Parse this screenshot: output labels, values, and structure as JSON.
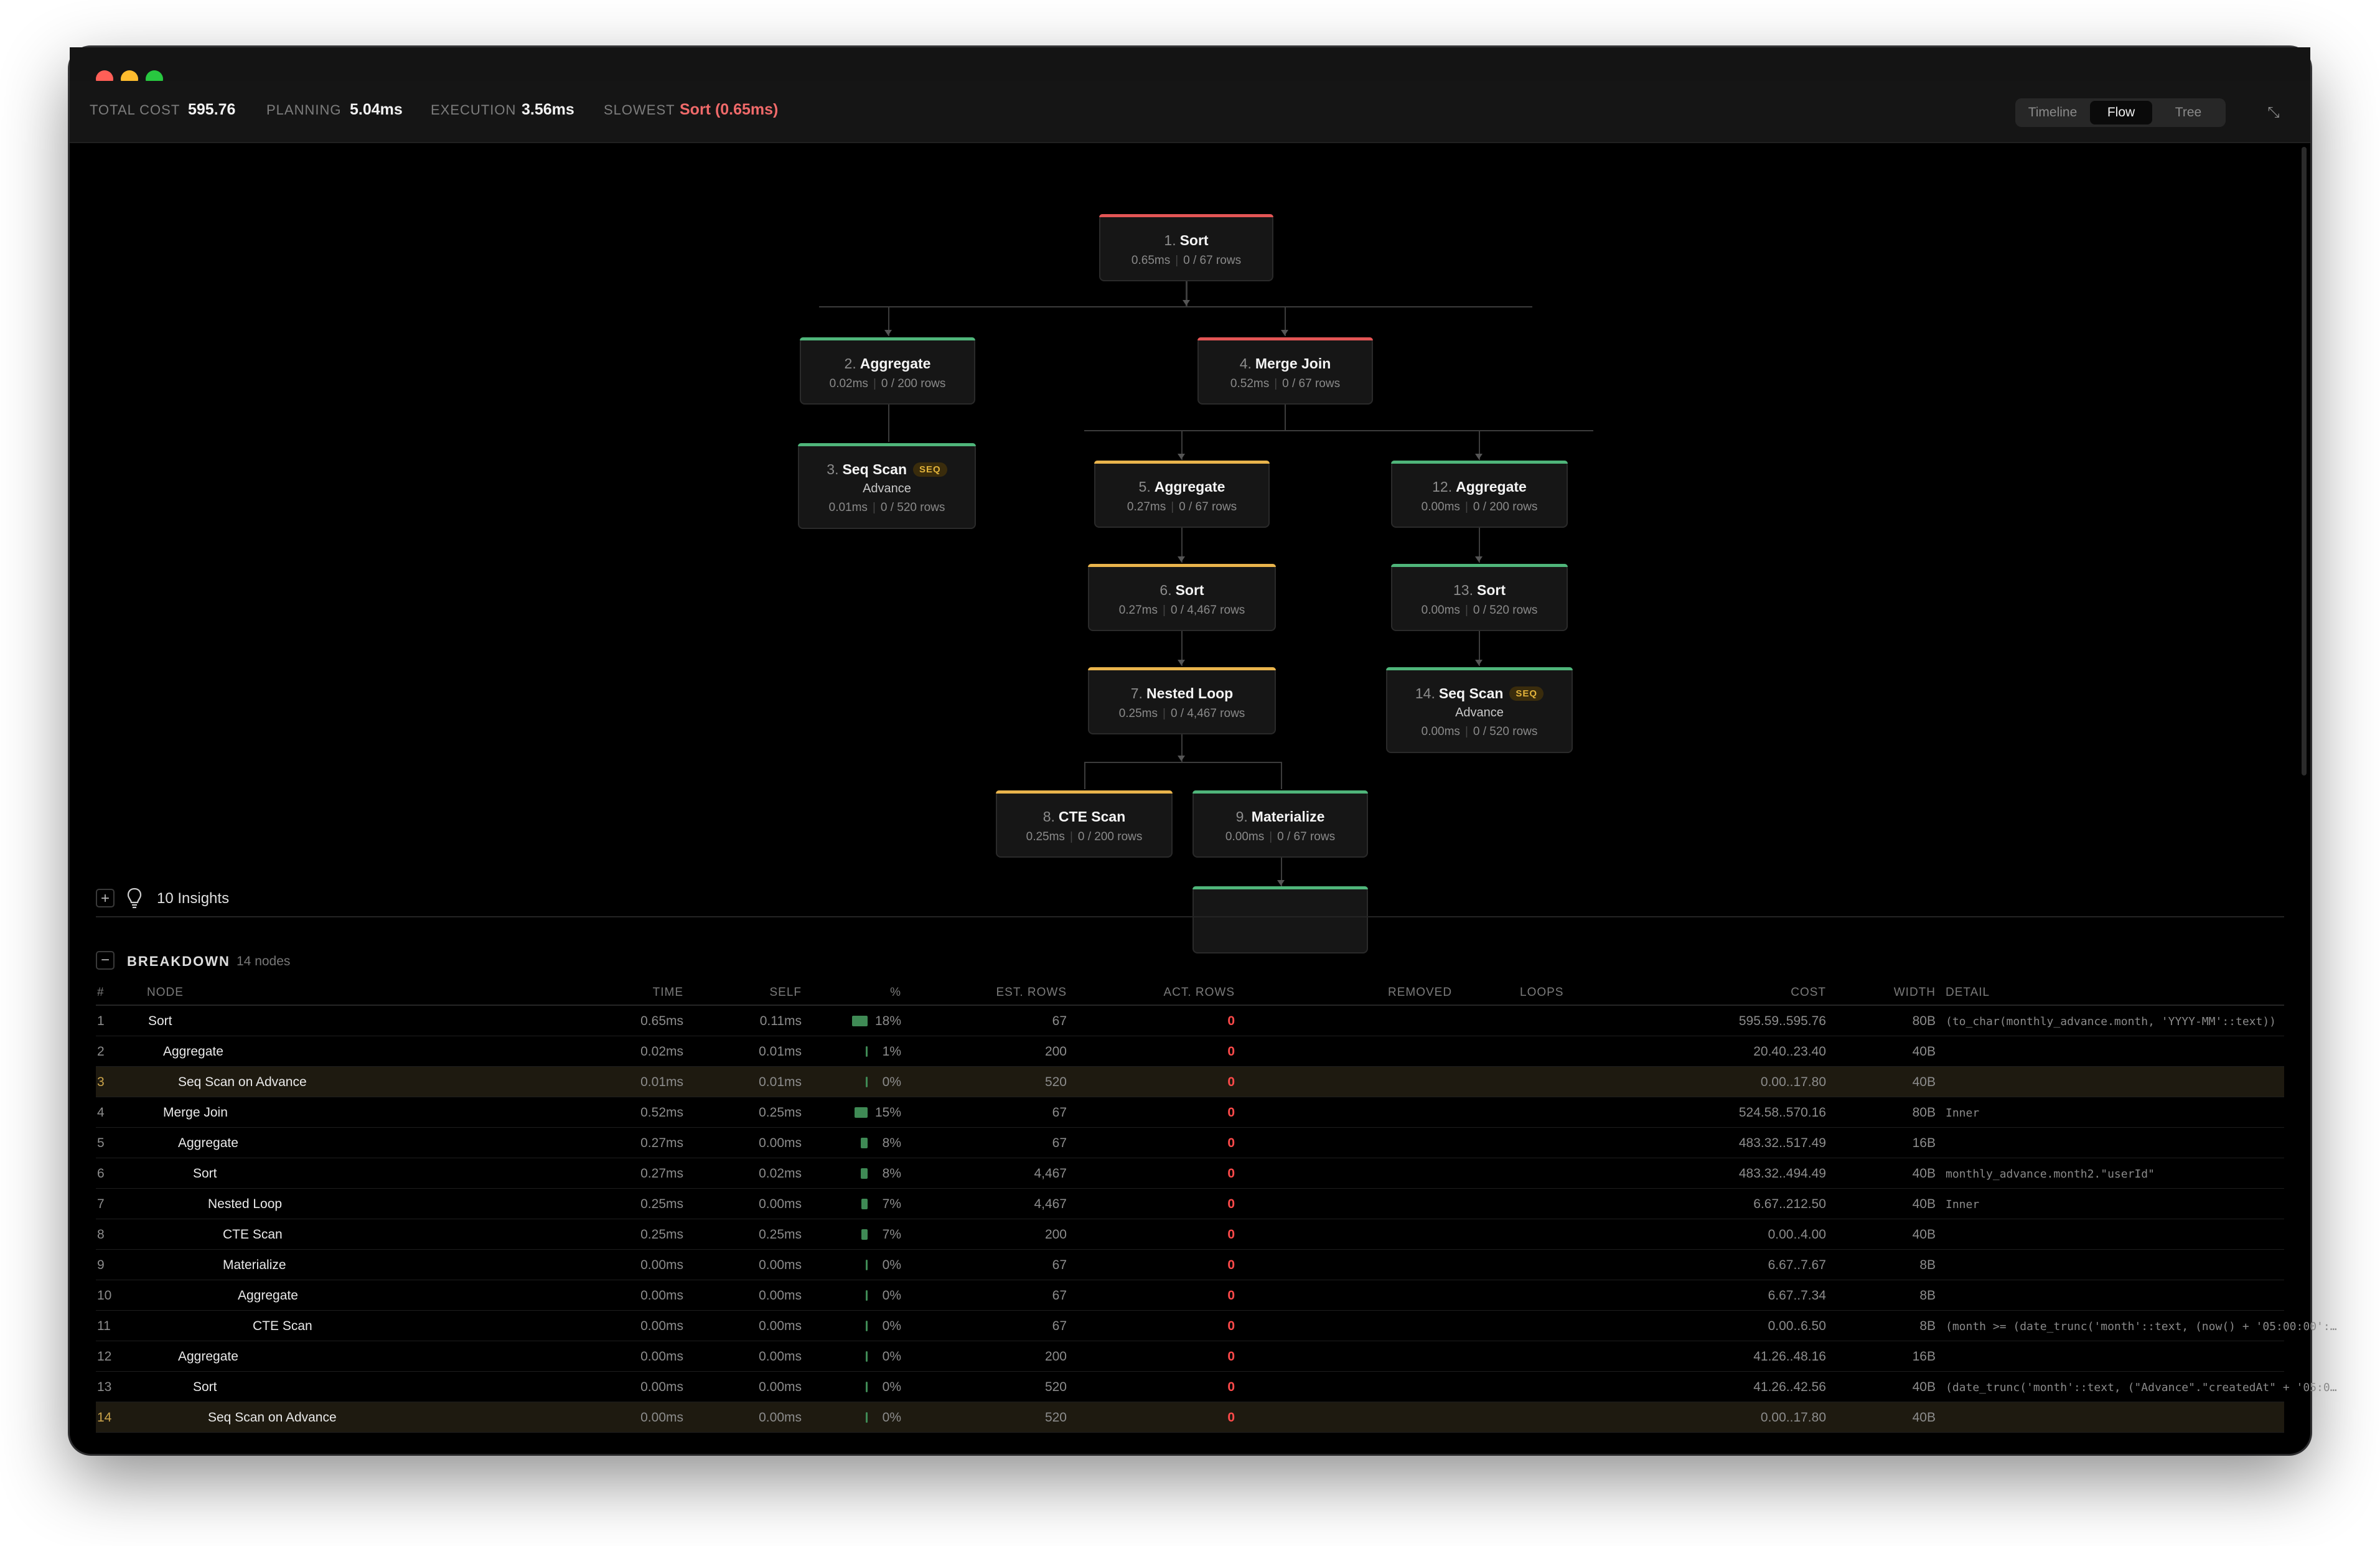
{
  "window": {
    "traffic_lights": [
      "#ff5f57",
      "#febc2e",
      "#28c840"
    ]
  },
  "stats": {
    "total_cost_label": "TOTAL COST",
    "total_cost": "595.76",
    "planning_label": "PLANNING",
    "planning": "5.04ms",
    "execution_label": "EXECUTION",
    "execution": "3.56ms",
    "slowest_label": "SLOWEST",
    "slowest": "Sort (0.65ms)"
  },
  "view_toggle": {
    "options": [
      "Timeline",
      "Flow",
      "Tree"
    ],
    "active": "Flow"
  },
  "colors": {
    "red": "#e25555",
    "green": "#4fb57a",
    "amber": "#e9b44c",
    "zero": "#ff4a4a"
  },
  "flow_nodes": [
    {
      "num": "1.",
      "name": "Sort",
      "time": "0.65ms",
      "rows": "0 / 67 rows",
      "status": "red"
    },
    {
      "num": "2.",
      "name": "Aggregate",
      "time": "0.02ms",
      "rows": "0 / 200 rows",
      "status": "green"
    },
    {
      "num": "4.",
      "name": "Merge Join",
      "time": "0.52ms",
      "rows": "0 / 67 rows",
      "status": "red"
    },
    {
      "num": "3.",
      "name": "Seq Scan",
      "badge": "SEQ",
      "relation": "Advance",
      "time": "0.01ms",
      "rows": "0 / 520 rows",
      "status": "green"
    },
    {
      "num": "5.",
      "name": "Aggregate",
      "time": "0.27ms",
      "rows": "0 / 67 rows",
      "status": "amber"
    },
    {
      "num": "12.",
      "name": "Aggregate",
      "time": "0.00ms",
      "rows": "0 / 200 rows",
      "status": "green"
    },
    {
      "num": "6.",
      "name": "Sort",
      "time": "0.27ms",
      "rows": "0 / 4,467 rows",
      "status": "amber"
    },
    {
      "num": "13.",
      "name": "Sort",
      "time": "0.00ms",
      "rows": "0 / 520 rows",
      "status": "green"
    },
    {
      "num": "7.",
      "name": "Nested Loop",
      "time": "0.25ms",
      "rows": "0 / 4,467 rows",
      "status": "amber"
    },
    {
      "num": "14.",
      "name": "Seq Scan",
      "badge": "SEQ",
      "relation": "Advance",
      "time": "0.00ms",
      "rows": "0 / 520 rows",
      "status": "green"
    },
    {
      "num": "8.",
      "name": "CTE Scan",
      "time": "0.25ms",
      "rows": "0 / 200 rows",
      "status": "amber"
    },
    {
      "num": "9.",
      "name": "Materialize",
      "time": "0.00ms",
      "rows": "0 / 67 rows",
      "status": "green"
    }
  ],
  "insights": {
    "toggle": "+",
    "label": "10 Insights"
  },
  "breakdown": {
    "toggle": "−",
    "title": "BREAKDOWN",
    "count": "14 nodes",
    "columns": [
      "#",
      "NODE",
      "TIME",
      "SELF",
      "%",
      "EST. ROWS",
      "ACT. ROWS",
      "REMOVED",
      "LOOPS",
      "COST",
      "WIDTH",
      "DETAIL"
    ],
    "rows": [
      {
        "id": "1",
        "node": "Sort",
        "depth": 0,
        "time": "0.65ms",
        "self": "0.11ms",
        "pct": "18%",
        "pct_value": 18,
        "est": "67",
        "act": "0",
        "removed": "",
        "loops": "",
        "cost": "595.59..595.76",
        "width": "80B",
        "detail": "(to_char(monthly_advance.month, 'YYYY-MM'::text))",
        "hl": false
      },
      {
        "id": "2",
        "node": "Aggregate",
        "depth": 1,
        "time": "0.02ms",
        "self": "0.01ms",
        "pct": "1%",
        "pct_value": 1,
        "est": "200",
        "act": "0",
        "removed": "",
        "loops": "",
        "cost": "20.40..23.40",
        "width": "40B",
        "detail": "",
        "hl": false
      },
      {
        "id": "3",
        "node": "Seq Scan on Advance",
        "depth": 2,
        "time": "0.01ms",
        "self": "0.01ms",
        "pct": "0%",
        "pct_value": 0,
        "est": "520",
        "act": "0",
        "removed": "",
        "loops": "",
        "cost": "0.00..17.80",
        "width": "40B",
        "detail": "",
        "hl": true
      },
      {
        "id": "4",
        "node": "Merge Join",
        "depth": 1,
        "time": "0.52ms",
        "self": "0.25ms",
        "pct": "15%",
        "pct_value": 15,
        "est": "67",
        "act": "0",
        "removed": "",
        "loops": "",
        "cost": "524.58..570.16",
        "width": "80B",
        "detail": "Inner",
        "hl": false
      },
      {
        "id": "5",
        "node": "Aggregate",
        "depth": 2,
        "time": "0.27ms",
        "self": "0.00ms",
        "pct": "8%",
        "pct_value": 8,
        "est": "67",
        "act": "0",
        "removed": "",
        "loops": "",
        "cost": "483.32..517.49",
        "width": "16B",
        "detail": "",
        "hl": false
      },
      {
        "id": "6",
        "node": "Sort",
        "depth": 3,
        "time": "0.27ms",
        "self": "0.02ms",
        "pct": "8%",
        "pct_value": 8,
        "est": "4,467",
        "act": "0",
        "removed": "",
        "loops": "",
        "cost": "483.32..494.49",
        "width": "40B",
        "detail": "monthly_advance.month2.\"userId\"",
        "hl": false
      },
      {
        "id": "7",
        "node": "Nested Loop",
        "depth": 4,
        "time": "0.25ms",
        "self": "0.00ms",
        "pct": "7%",
        "pct_value": 7,
        "est": "4,467",
        "act": "0",
        "removed": "",
        "loops": "",
        "cost": "6.67..212.50",
        "width": "40B",
        "detail": "Inner",
        "hl": false
      },
      {
        "id": "8",
        "node": "CTE Scan",
        "depth": 5,
        "time": "0.25ms",
        "self": "0.25ms",
        "pct": "7%",
        "pct_value": 7,
        "est": "200",
        "act": "0",
        "removed": "",
        "loops": "",
        "cost": "0.00..4.00",
        "width": "40B",
        "detail": "",
        "hl": false
      },
      {
        "id": "9",
        "node": "Materialize",
        "depth": 5,
        "time": "0.00ms",
        "self": "0.00ms",
        "pct": "0%",
        "pct_value": 0,
        "est": "67",
        "act": "0",
        "removed": "",
        "loops": "",
        "cost": "6.67..7.67",
        "width": "8B",
        "detail": "",
        "hl": false
      },
      {
        "id": "10",
        "node": "Aggregate",
        "depth": 6,
        "time": "0.00ms",
        "self": "0.00ms",
        "pct": "0%",
        "pct_value": 0,
        "est": "67",
        "act": "0",
        "removed": "",
        "loops": "",
        "cost": "6.67..7.34",
        "width": "8B",
        "detail": "",
        "hl": false
      },
      {
        "id": "11",
        "node": "CTE Scan",
        "depth": 7,
        "time": "0.00ms",
        "self": "0.00ms",
        "pct": "0%",
        "pct_value": 0,
        "est": "67",
        "act": "0",
        "removed": "",
        "loops": "",
        "cost": "0.00..6.50",
        "width": "8B",
        "detail": "(month >= (date_trunc('month'::text, (now() + '05:00:00':…",
        "hl": false
      },
      {
        "id": "12",
        "node": "Aggregate",
        "depth": 2,
        "time": "0.00ms",
        "self": "0.00ms",
        "pct": "0%",
        "pct_value": 0,
        "est": "200",
        "act": "0",
        "removed": "",
        "loops": "",
        "cost": "41.26..48.16",
        "width": "16B",
        "detail": "",
        "hl": false
      },
      {
        "id": "13",
        "node": "Sort",
        "depth": 3,
        "time": "0.00ms",
        "self": "0.00ms",
        "pct": "0%",
        "pct_value": 0,
        "est": "520",
        "act": "0",
        "removed": "",
        "loops": "",
        "cost": "41.26..42.56",
        "width": "40B",
        "detail": "(date_trunc('month'::text, (\"Advance\".\"createdAt\" + '05:0…",
        "hl": false
      },
      {
        "id": "14",
        "node": "Seq Scan on Advance",
        "depth": 4,
        "time": "0.00ms",
        "self": "0.00ms",
        "pct": "0%",
        "pct_value": 0,
        "est": "520",
        "act": "0",
        "removed": "",
        "loops": "",
        "cost": "0.00..17.80",
        "width": "40B",
        "detail": "",
        "hl": true
      }
    ]
  }
}
